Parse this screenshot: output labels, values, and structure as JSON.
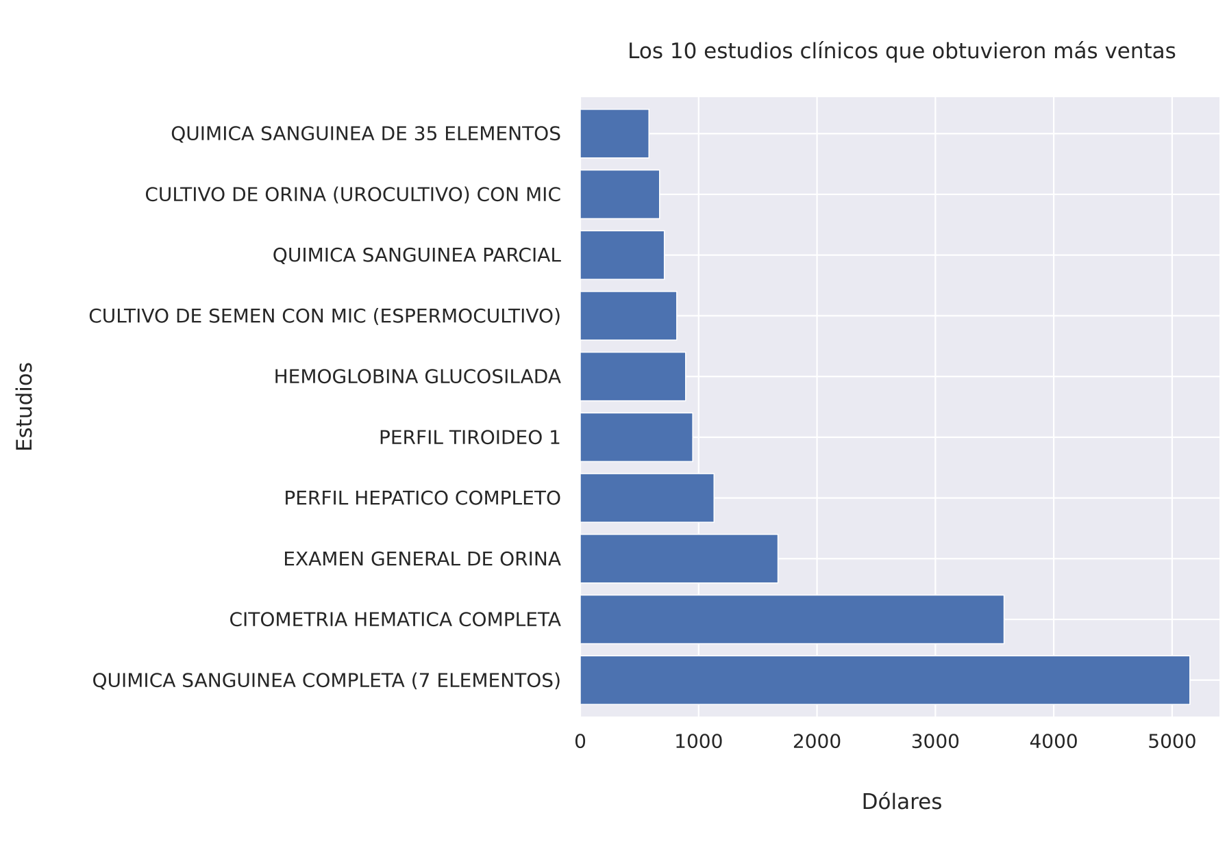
{
  "chart_data": {
    "type": "bar",
    "orientation": "horizontal",
    "title": "Los 10 estudios clínicos que obtuvieron más ventas",
    "xlabel": "Dólares",
    "ylabel": "Estudios",
    "categories": [
      "QUIMICA SANGUINEA COMPLETA (7 ELEMENTOS)",
      "CITOMETRIA HEMATICA COMPLETA",
      "EXAMEN GENERAL DE ORINA",
      "PERFIL HEPATICO COMPLETO",
      "PERFIL TIROIDEO 1",
      "HEMOGLOBINA GLUCOSILADA",
      "CULTIVO DE SEMEN CON MIC (ESPERMOCULTIVO)",
      "QUIMICA SANGUINEA PARCIAL",
      "CULTIVO DE ORINA (UROCULTIVO) CON MIC",
      "QUIMICA SANGUINEA DE 35 ELEMENTOS"
    ],
    "values": [
      5150,
      3580,
      1670,
      1130,
      950,
      890,
      815,
      710,
      670,
      580
    ],
    "xlim": [
      0,
      5400
    ],
    "xticks": [
      0,
      1000,
      2000,
      3000,
      4000,
      5000
    ],
    "grid": true,
    "legend": "none",
    "colors": {
      "bar": "#4c72b0",
      "plot_background": "#eaeaf2",
      "grid": "#ffffff",
      "text": "#262626"
    }
  }
}
